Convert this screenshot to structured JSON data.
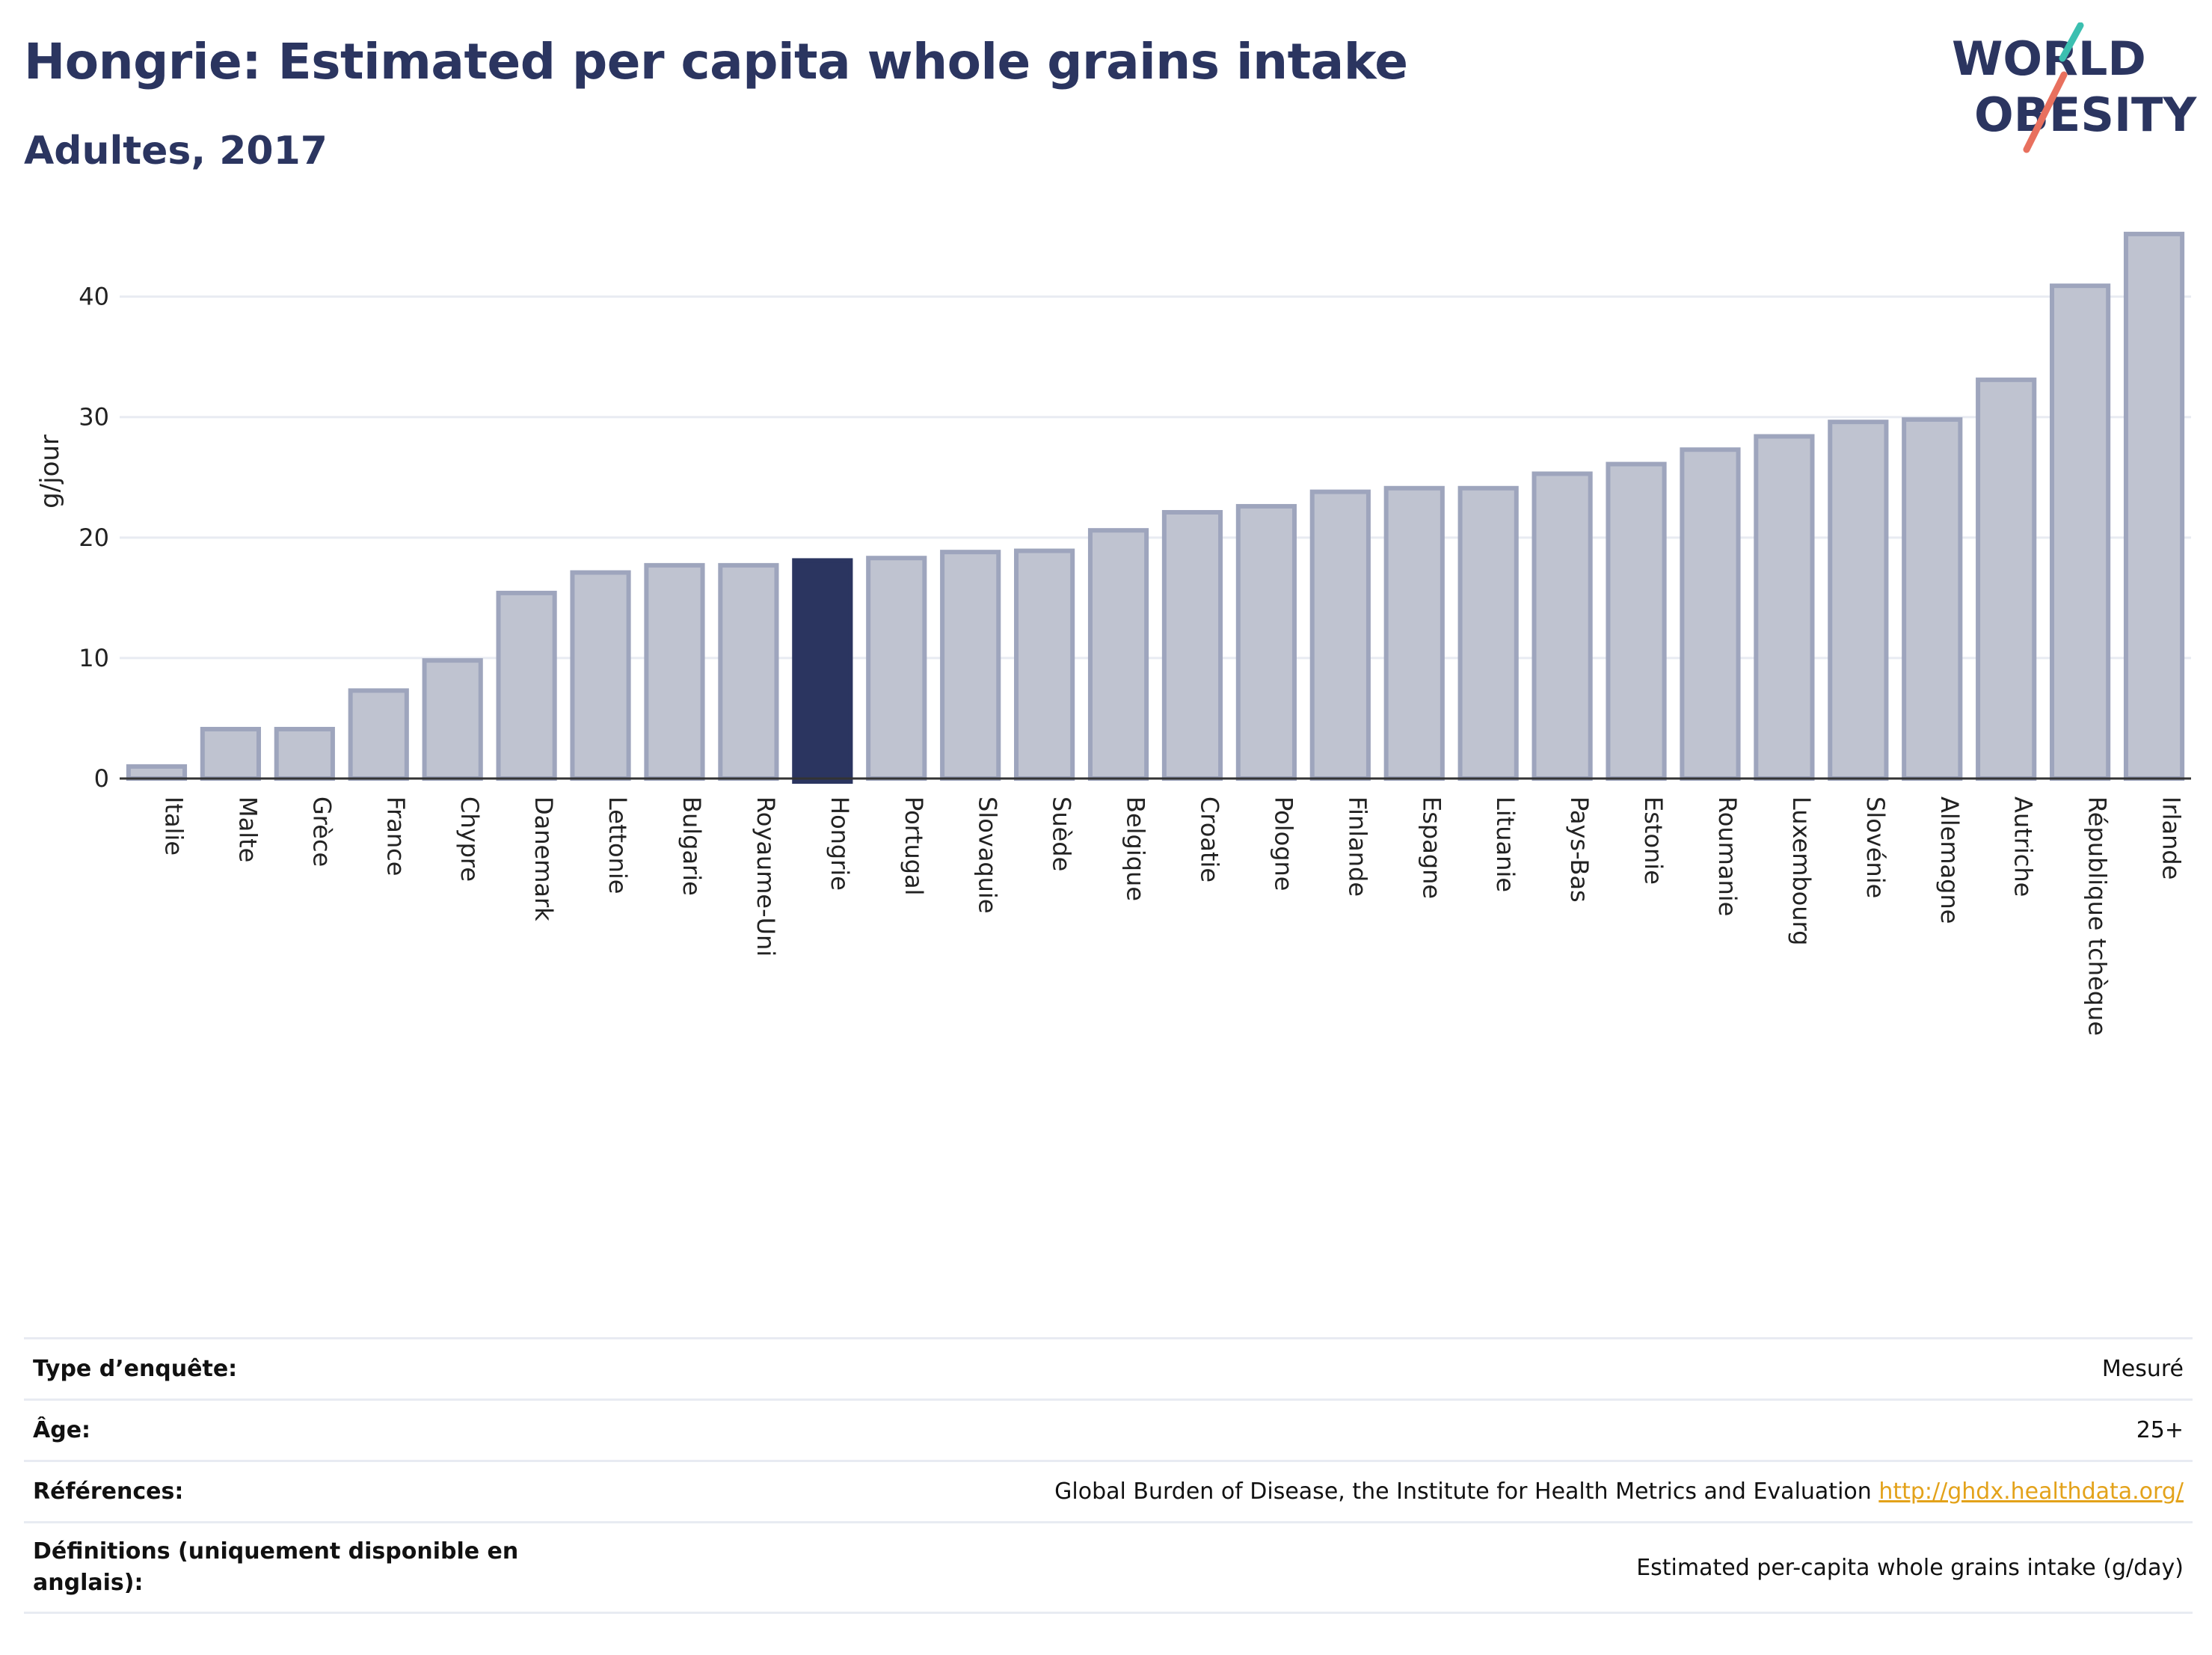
{
  "header": {
    "title": "Hongrie: Estimated per capita whole grains intake",
    "subtitle": "Adultes, 2017"
  },
  "logo": {
    "line1": "WORLD",
    "line2": "OBESITY",
    "accent_teal": "#3bbfb0",
    "accent_coral": "#e8705e",
    "text_color": "#2b3560"
  },
  "colors": {
    "highlight": "#2b3560",
    "bar_fill": "#bfc3d0",
    "bar_stroke": "#9ea5bd",
    "grid": "#e8ebf2",
    "axis": "#333333"
  },
  "chart_data": {
    "type": "bar",
    "ylabel": "g/jour",
    "xlabel": "",
    "ylim": [
      0,
      46
    ],
    "yticks": [
      0,
      10,
      20,
      30,
      40
    ],
    "highlight": "Hongrie",
    "grid": true,
    "categories": [
      "Italie",
      "Malte",
      "Grèce",
      "France",
      "Chypre",
      "Danemark",
      "Lettonie",
      "Bulgarie",
      "Royaume-Uni",
      "Hongrie",
      "Portugal",
      "Slovaquie",
      "Suède",
      "Belgique",
      "Croatie",
      "Pologne",
      "Finlande",
      "Espagne",
      "Lituanie",
      "Pays-Bas",
      "Estonie",
      "Roumanie",
      "Luxembourg",
      "Slovénie",
      "Allemagne",
      "Autriche",
      "République tchèque",
      "Irlande"
    ],
    "values": [
      1.0,
      4.1,
      4.1,
      7.3,
      9.8,
      15.4,
      17.1,
      17.7,
      17.7,
      18.1,
      18.3,
      18.8,
      18.9,
      20.6,
      22.1,
      22.6,
      23.8,
      24.1,
      24.1,
      25.3,
      26.1,
      27.3,
      28.4,
      29.6,
      29.8,
      33.1,
      40.9,
      45.2
    ]
  },
  "info": {
    "survey_type_label": "Type d’enquête:",
    "survey_type_value": "Mesuré",
    "age_label": "Âge:",
    "age_value": "25+",
    "references_label": "Références:",
    "references_value": "Global Burden of Disease, the Institute for Health Metrics and Evaluation ",
    "references_link": "http://ghdx.healthdata.org/",
    "definitions_label": "Définitions (uniquement disponible en anglais):",
    "definitions_value": "Estimated per-capita whole grains intake (g/day)"
  }
}
